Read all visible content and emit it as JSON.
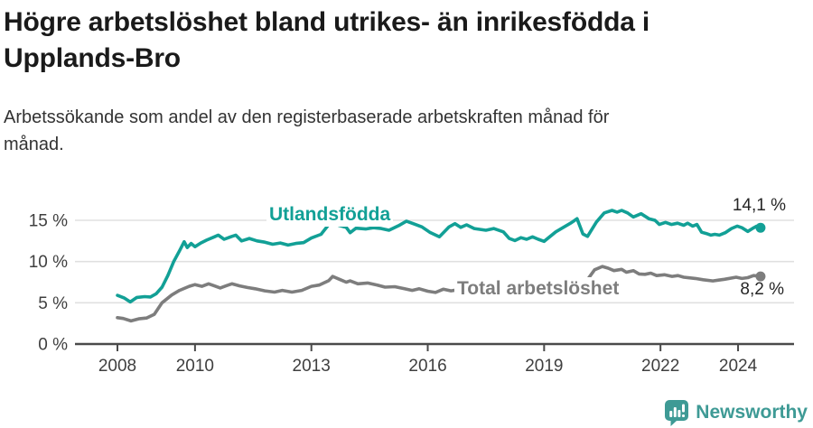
{
  "header": {
    "title_line1": "Högre arbetslöshet bland utrikes- än inrikesfödda i",
    "title_line2": "Upplands-Bro",
    "subtitle_line1": "Arbetssökande som andel av den registerbaserade arbetskraften månad för",
    "subtitle_line2": "månad."
  },
  "footer": {
    "brand": "Newsworthy",
    "brand_color": "#3e9a95",
    "logo_icon": "bar-chart-speech-bubble"
  },
  "colors": {
    "foreign_born": "#12a096",
    "total": "#7d7d7d",
    "grid": "#e0e0e0",
    "axis": "#4a4a4a",
    "axis_text": "#3f3f3f",
    "annotation_text": "#262626"
  },
  "chart_data": {
    "type": "line",
    "title": "Högre arbetslöshet bland utrikes- än inrikesfödda i Upplands-Bro",
    "subtitle": "Arbetssökande som andel av den registerbaserade arbetskraften månad för månad.",
    "unit": "%",
    "grid": "horizontal",
    "legend_position": "inline-labels",
    "xlim": [
      2007.85,
      2025.45
    ],
    "ylim": [
      0,
      17
    ],
    "x_ticks": [
      {
        "value": 2008,
        "label": "2008"
      },
      {
        "value": 2010,
        "label": "2010"
      },
      {
        "value": 2013,
        "label": "2013"
      },
      {
        "value": 2016,
        "label": "2016"
      },
      {
        "value": 2019,
        "label": "2019"
      },
      {
        "value": 2022,
        "label": "2022"
      },
      {
        "value": 2024,
        "label": "2024"
      }
    ],
    "y_ticks": [
      {
        "value": 0,
        "label": "0 %"
      },
      {
        "value": 5,
        "label": "5 %"
      },
      {
        "value": 10,
        "label": "10 %"
      },
      {
        "value": 15,
        "label": "15 %"
      }
    ],
    "series": [
      {
        "label": "Utlandsfödda",
        "color": "#12a096",
        "end_label": "14,1 %",
        "end_value": 14.1,
        "points": [
          [
            2008.0,
            5.9
          ],
          [
            2008.17,
            5.6
          ],
          [
            2008.33,
            5.1
          ],
          [
            2008.5,
            5.65
          ],
          [
            2008.7,
            5.75
          ],
          [
            2008.85,
            5.7
          ],
          [
            2009.0,
            6.1
          ],
          [
            2009.15,
            6.9
          ],
          [
            2009.3,
            8.3
          ],
          [
            2009.45,
            10.0
          ],
          [
            2009.6,
            11.3
          ],
          [
            2009.72,
            12.4
          ],
          [
            2009.8,
            11.7
          ],
          [
            2009.9,
            12.2
          ],
          [
            2010.0,
            11.8
          ],
          [
            2010.15,
            12.25
          ],
          [
            2010.3,
            12.6
          ],
          [
            2010.5,
            13.0
          ],
          [
            2010.6,
            13.2
          ],
          [
            2010.75,
            12.7
          ],
          [
            2010.95,
            13.05
          ],
          [
            2011.05,
            13.2
          ],
          [
            2011.2,
            12.5
          ],
          [
            2011.4,
            12.8
          ],
          [
            2011.6,
            12.5
          ],
          [
            2011.8,
            12.35
          ],
          [
            2012.0,
            12.1
          ],
          [
            2012.2,
            12.25
          ],
          [
            2012.4,
            12.0
          ],
          [
            2012.6,
            12.2
          ],
          [
            2012.8,
            12.3
          ],
          [
            2013.0,
            12.85
          ],
          [
            2013.25,
            13.3
          ],
          [
            2013.45,
            14.5
          ],
          [
            2013.55,
            14.85
          ],
          [
            2013.7,
            14.4
          ],
          [
            2013.9,
            14.15
          ],
          [
            2014.0,
            13.5
          ],
          [
            2014.15,
            14.05
          ],
          [
            2014.4,
            13.95
          ],
          [
            2014.6,
            14.1
          ],
          [
            2014.8,
            14.0
          ],
          [
            2015.0,
            13.8
          ],
          [
            2015.25,
            14.35
          ],
          [
            2015.45,
            14.9
          ],
          [
            2015.65,
            14.55
          ],
          [
            2015.85,
            14.2
          ],
          [
            2016.05,
            13.55
          ],
          [
            2016.3,
            13.0
          ],
          [
            2016.55,
            14.2
          ],
          [
            2016.7,
            14.6
          ],
          [
            2016.85,
            14.15
          ],
          [
            2017.0,
            14.45
          ],
          [
            2017.2,
            14.0
          ],
          [
            2017.5,
            13.8
          ],
          [
            2017.7,
            14.0
          ],
          [
            2017.95,
            13.6
          ],
          [
            2018.1,
            12.8
          ],
          [
            2018.25,
            12.55
          ],
          [
            2018.4,
            12.9
          ],
          [
            2018.55,
            12.7
          ],
          [
            2018.7,
            13.0
          ],
          [
            2018.85,
            12.7
          ],
          [
            2019.0,
            12.45
          ],
          [
            2019.3,
            13.6
          ],
          [
            2019.55,
            14.3
          ],
          [
            2019.7,
            14.7
          ],
          [
            2019.85,
            15.2
          ],
          [
            2020.0,
            13.35
          ],
          [
            2020.12,
            13.05
          ],
          [
            2020.35,
            14.8
          ],
          [
            2020.55,
            15.9
          ],
          [
            2020.75,
            16.2
          ],
          [
            2020.88,
            16.0
          ],
          [
            2021.0,
            16.2
          ],
          [
            2021.15,
            15.9
          ],
          [
            2021.3,
            15.4
          ],
          [
            2021.5,
            15.8
          ],
          [
            2021.7,
            15.2
          ],
          [
            2021.86,
            15.0
          ],
          [
            2021.97,
            14.5
          ],
          [
            2022.13,
            14.75
          ],
          [
            2022.28,
            14.5
          ],
          [
            2022.44,
            14.65
          ],
          [
            2022.6,
            14.4
          ],
          [
            2022.7,
            14.65
          ],
          [
            2022.83,
            14.3
          ],
          [
            2022.94,
            14.5
          ],
          [
            2023.06,
            13.55
          ],
          [
            2023.18,
            13.4
          ],
          [
            2023.3,
            13.2
          ],
          [
            2023.4,
            13.3
          ],
          [
            2023.52,
            13.2
          ],
          [
            2023.67,
            13.5
          ],
          [
            2023.83,
            14.0
          ],
          [
            2023.98,
            14.3
          ],
          [
            2024.1,
            14.1
          ],
          [
            2024.25,
            13.65
          ],
          [
            2024.37,
            14.0
          ],
          [
            2024.48,
            14.3
          ],
          [
            2024.58,
            14.1
          ]
        ]
      },
      {
        "label": "Total arbetslöshet",
        "color": "#7d7d7d",
        "end_label": "8,2 %",
        "end_value": 8.2,
        "points": [
          [
            2008.0,
            3.2
          ],
          [
            2008.15,
            3.1
          ],
          [
            2008.35,
            2.8
          ],
          [
            2008.55,
            3.05
          ],
          [
            2008.75,
            3.15
          ],
          [
            2008.95,
            3.6
          ],
          [
            2009.15,
            5.0
          ],
          [
            2009.4,
            5.95
          ],
          [
            2009.6,
            6.5
          ],
          [
            2009.85,
            7.0
          ],
          [
            2010.0,
            7.2
          ],
          [
            2010.18,
            7.0
          ],
          [
            2010.35,
            7.3
          ],
          [
            2010.5,
            7.05
          ],
          [
            2010.65,
            6.8
          ],
          [
            2010.8,
            7.05
          ],
          [
            2010.95,
            7.3
          ],
          [
            2011.15,
            7.05
          ],
          [
            2011.35,
            6.85
          ],
          [
            2011.55,
            6.7
          ],
          [
            2011.8,
            6.45
          ],
          [
            2012.05,
            6.3
          ],
          [
            2012.25,
            6.5
          ],
          [
            2012.5,
            6.3
          ],
          [
            2012.75,
            6.5
          ],
          [
            2013.0,
            7.0
          ],
          [
            2013.2,
            7.15
          ],
          [
            2013.45,
            7.7
          ],
          [
            2013.55,
            8.2
          ],
          [
            2013.75,
            7.8
          ],
          [
            2013.9,
            7.5
          ],
          [
            2014.0,
            7.65
          ],
          [
            2014.2,
            7.3
          ],
          [
            2014.45,
            7.4
          ],
          [
            2014.7,
            7.15
          ],
          [
            2014.9,
            6.9
          ],
          [
            2015.15,
            6.95
          ],
          [
            2015.4,
            6.7
          ],
          [
            2015.6,
            6.5
          ],
          [
            2015.78,
            6.7
          ],
          [
            2016.0,
            6.4
          ],
          [
            2016.2,
            6.25
          ],
          [
            2016.4,
            6.65
          ],
          [
            2016.6,
            6.45
          ],
          [
            2016.8,
            6.6
          ],
          [
            2017.1,
            6.45
          ],
          [
            2017.5,
            6.3
          ],
          [
            2018.0,
            6.15
          ],
          [
            2018.5,
            6.05
          ],
          [
            2019.0,
            6.15
          ],
          [
            2019.4,
            6.3
          ],
          [
            2019.7,
            6.6
          ],
          [
            2019.9,
            7.0
          ],
          [
            2020.1,
            7.7
          ],
          [
            2020.3,
            9.0
          ],
          [
            2020.5,
            9.4
          ],
          [
            2020.65,
            9.2
          ],
          [
            2020.8,
            8.9
          ],
          [
            2021.0,
            9.05
          ],
          [
            2021.12,
            8.7
          ],
          [
            2021.3,
            8.9
          ],
          [
            2021.45,
            8.5
          ],
          [
            2021.6,
            8.45
          ],
          [
            2021.75,
            8.6
          ],
          [
            2021.9,
            8.3
          ],
          [
            2022.1,
            8.4
          ],
          [
            2022.3,
            8.2
          ],
          [
            2022.45,
            8.3
          ],
          [
            2022.6,
            8.1
          ],
          [
            2022.9,
            7.95
          ],
          [
            2023.1,
            7.8
          ],
          [
            2023.35,
            7.65
          ],
          [
            2023.5,
            7.75
          ],
          [
            2023.65,
            7.85
          ],
          [
            2023.95,
            8.1
          ],
          [
            2024.1,
            7.95
          ],
          [
            2024.25,
            8.05
          ],
          [
            2024.4,
            8.3
          ],
          [
            2024.58,
            8.2
          ]
        ]
      }
    ]
  }
}
